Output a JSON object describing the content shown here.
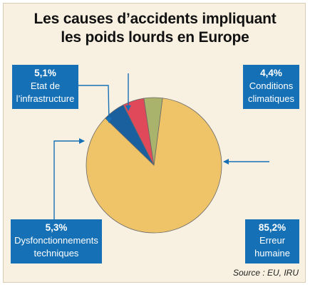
{
  "title_lines": [
    "Les causes d’accidents impliquant",
    "les poids lourds en Europe"
  ],
  "source": "Source : EU, IRU",
  "colors": {
    "background": "#f8f1e1",
    "label_box": "#1570b6",
    "arrow": "#1570b6",
    "slice_border": "#6a6a6a"
  },
  "chart_data": {
    "type": "pie",
    "title": "Les causes d’accidents impliquant les poids lourds en Europe",
    "slices": [
      {
        "label_lines": [
          "Erreur",
          "humaine"
        ],
        "value": 85.2,
        "value_label": "85,2%",
        "color": "#efc367"
      },
      {
        "label_lines": [
          "Dysfonctionnements",
          "techniques"
        ],
        "value": 5.3,
        "value_label": "5,3%",
        "color": "#1a5f9e"
      },
      {
        "label_lines": [
          "Etat de",
          "l’infrastructure"
        ],
        "value": 5.1,
        "value_label": "5,1%",
        "color": "#e0495a"
      },
      {
        "label_lines": [
          "Conditions",
          "climatiques"
        ],
        "value": 4.4,
        "value_label": "4,4%",
        "color": "#a9b36b"
      }
    ],
    "legend": "callout boxes",
    "grid": false
  }
}
